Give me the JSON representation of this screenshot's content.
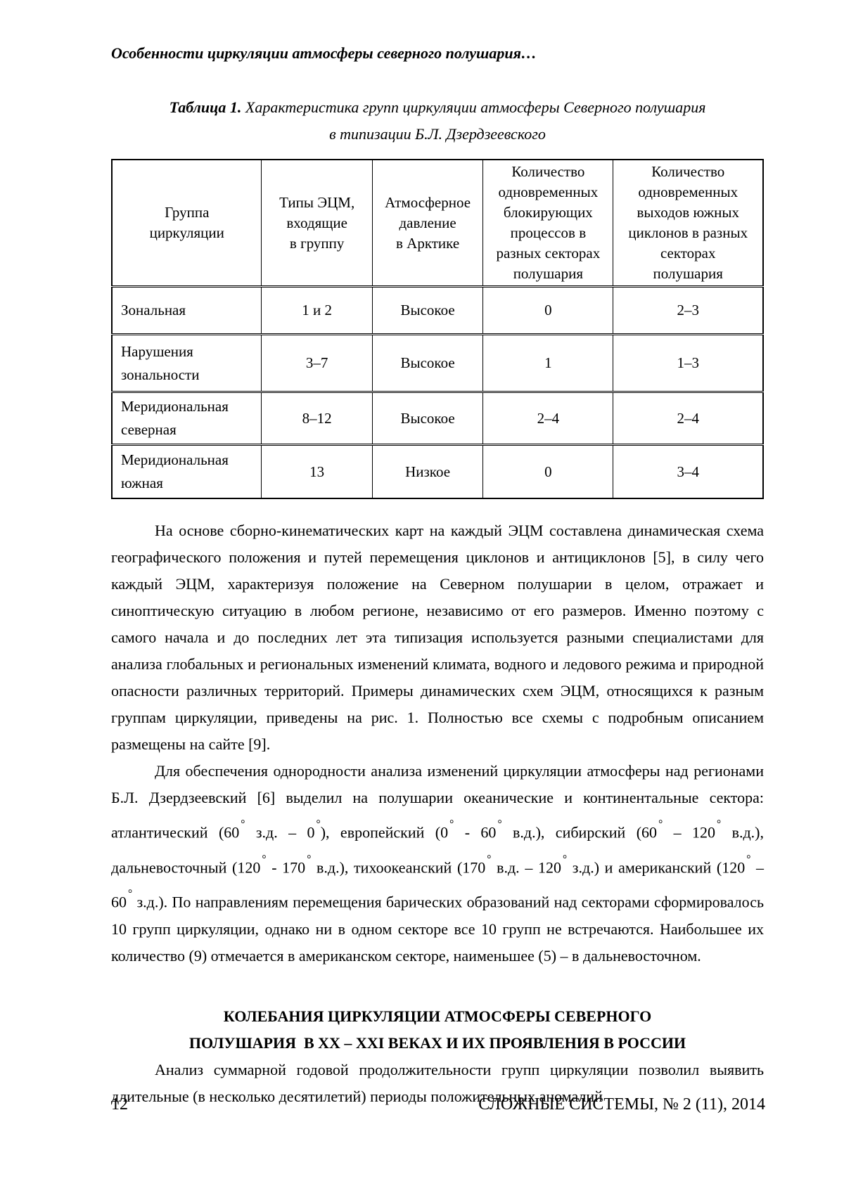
{
  "running_head": "Особенности циркуляции атмосферы северного полушария…",
  "caption": {
    "label": "Таблица 1.",
    "line1": "Характеристика групп циркуляции атмосферы Северного полушария",
    "line2": "в типизации Б.Л. Дзердзеевского"
  },
  "table": {
    "headers": [
      "Группа\nциркуляции",
      "Типы ЭЦМ,\nвходящие\nв группу",
      "Атмосферное\nдавление\nв Арктике",
      "Количество\nодновременных\nблокирующих\nпроцессов в\nразных секторах\nполушария",
      "Количество\nодновременных\nвыходов южных\nциклонов в разных\nсекторах\nполушария"
    ],
    "rows": [
      [
        "Зональная",
        "1 и 2",
        "Высокое",
        "0",
        "2–3"
      ],
      [
        "Нарушения\nзональности",
        "3–7",
        "Высокое",
        "1",
        "1–3"
      ],
      [
        "Меридиональная\nсеверная",
        "8–12",
        "Высокое",
        "2–4",
        "2–4"
      ],
      [
        "Меридиональная\nюжная",
        "13",
        "Низкое",
        "0",
        "3–4"
      ]
    ]
  },
  "body": {
    "paragraph1": "На основе сборно-кинематических карт на каждый ЭЦМ составлена динамическая схема географического положения и путей перемещения циклонов и антициклонов [5], в силу чего каждый ЭЦМ, характеризуя положение на Северном полушарии в целом, отражает и синоптическую ситуацию в любом регионе, независимо от его размеров. Именно поэтому с самого начала и до последних лет эта типизация используется разными специалистами для анализа глобальных и региональных изменений климата, водного и ледового режима и природной опасности различных территорий. Примеры динамических схем ЭЦМ, относящихся к разным группам циркуляции, приведены на рис. 1. Полностью все схемы с подробным описанием размещены на сайте [9].",
    "paragraph2": "Для обеспечения однородности анализа изменений циркуляции атмосферы над регионами Б.Л. Дзердзеевский [6] выделил на полушарии океанические и континентальные сектора: атлантический (60° з.д. – 0°), европейский (0° - 60° в.д.), сибирский (60° – 120° в.д.), дальневосточный (120° - 170° в.д.), тихоокеанский (170° в.д. – 120° з.д.) и американский (120° – 60° з.д.). По направлениям перемещения барических образований над секторами сформировалось 10 групп циркуляции, однако ни в одном секторе все 10 групп не встречаются. Наибольшее их количество (9) отмечается в американском секторе, наименьшее (5) – в дальневосточном.",
    "heading_line1": "КОЛЕБАНИЯ ЦИРКУЛЯЦИИ АТМОСФЕРЫ СЕВЕРНОГО",
    "heading_line2": "ПОЛУШАРИЯ  В XX – XXI ВЕКАХ И ИХ ПРОЯВЛЕНИЯ В РОССИИ",
    "paragraph3": "Анализ суммарной годовой продолжительности групп циркуляции позволил выявить длительные (в несколько десятилетий) периоды положительных аномалий"
  },
  "footer": {
    "page_number": "12",
    "journal": "СЛОЖНЫЕ СИСТЕМЫ, № 2 (11), 2014"
  }
}
